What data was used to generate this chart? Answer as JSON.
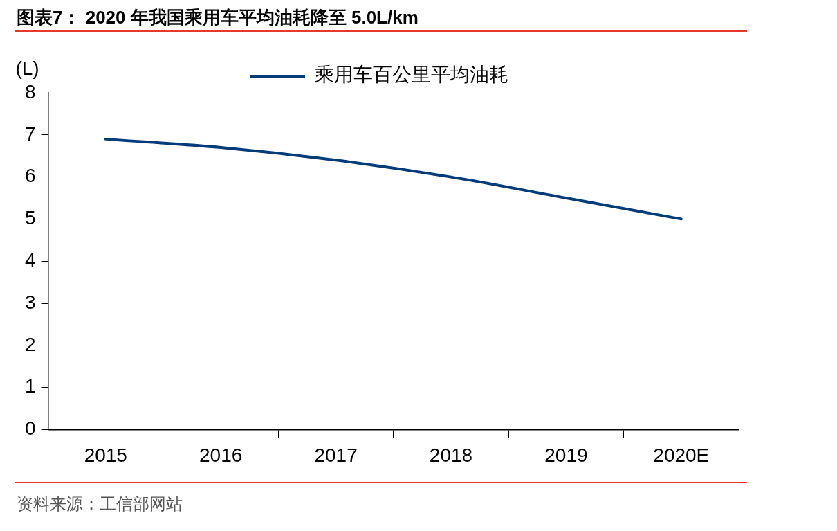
{
  "chart_data": {
    "type": "line",
    "title": "图表7：  2020 年我国乘用车平均油耗降至 5.0L/km",
    "ylabel": "(L)",
    "categories": [
      "2015",
      "2016",
      "2017",
      "2018",
      "2019",
      "2020E"
    ],
    "series": [
      {
        "name": "乘用车百公里平均油耗",
        "color": "#003b7a",
        "values": [
          6.9,
          6.7,
          6.4,
          6.0,
          5.5,
          5.0
        ]
      }
    ],
    "ylim": [
      0,
      8
    ],
    "yticks": [
      0,
      1,
      2,
      3,
      4,
      5,
      6,
      7,
      8
    ],
    "grid": false,
    "legend": "top",
    "marker": "none",
    "line_style": "solid",
    "annotations": [
      "资料来源：工信部网站"
    ]
  }
}
